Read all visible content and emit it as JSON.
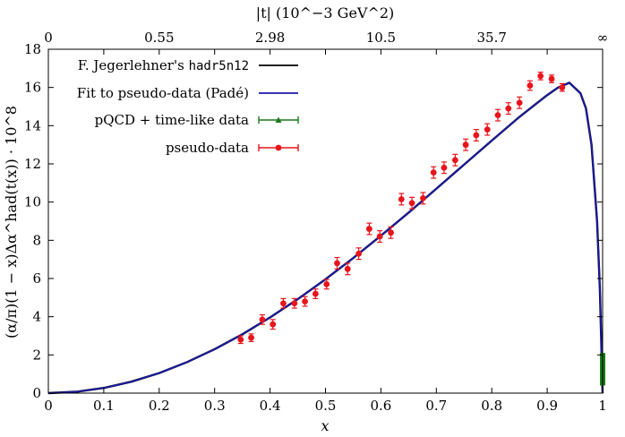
{
  "chart_data": {
    "type": "line",
    "xlabel": "x",
    "ylabel": "(α/π)(1 − x)Δα^had(t(x)) · 10^8",
    "top_axis_label": "|t| (10^−3 GeV^2)",
    "xlim": [
      0,
      1
    ],
    "ylim": [
      0,
      18
    ],
    "x_ticks": [
      0,
      0.1,
      0.2,
      0.3,
      0.4,
      0.5,
      0.6,
      0.7,
      0.8,
      0.9,
      1
    ],
    "x_tick_labels": [
      "0",
      "0.1",
      "0.2",
      "0.3",
      "0.4",
      "0.5",
      "0.6",
      "0.7",
      "0.8",
      "0.9",
      "1"
    ],
    "y_ticks": [
      0,
      2,
      4,
      6,
      8,
      10,
      12,
      14,
      16,
      18
    ],
    "y_tick_labels": [
      "0",
      "2",
      "4",
      "6",
      "8",
      "10",
      "12",
      "14",
      "16",
      "18"
    ],
    "top_ticks": [
      {
        "x": 0,
        "label": "0"
      },
      {
        "x": 0.2,
        "label": "0.55"
      },
      {
        "x": 0.4,
        "label": "2.98"
      },
      {
        "x": 0.6,
        "label": "10.5"
      },
      {
        "x": 0.8,
        "label": "35.7"
      },
      {
        "x": 1,
        "label": "∞"
      }
    ],
    "legend": {
      "position": "top-left",
      "entries": [
        {
          "label_prefix": "F. Jegerlehner's ",
          "label_code": "hadr5n12",
          "color": "#000000",
          "style": "line"
        },
        {
          "label_prefix": "Fit to pseudo-data (Padé)",
          "label_code": "",
          "color": "#1a1aa8",
          "style": "line"
        },
        {
          "label_prefix": "pQCD + time-like data",
          "label_code": "",
          "color": "#1a7a1a",
          "style": "triangle-errorbar"
        },
        {
          "label_prefix": "pseudo-data",
          "label_code": "",
          "color": "#e8141c",
          "style": "circle-errorbar"
        }
      ]
    },
    "series": [
      {
        "name": "F. Jegerlehner's hadr5n12",
        "color": "#000000",
        "x": [
          0,
          0.05,
          0.1,
          0.15,
          0.2,
          0.25,
          0.3,
          0.35,
          0.4,
          0.45,
          0.5,
          0.55,
          0.6,
          0.65,
          0.7,
          0.75,
          0.8,
          0.85,
          0.9,
          0.92,
          0.94,
          0.96,
          0.97,
          0.98,
          0.99,
          0.995,
          1
        ],
        "y": [
          0,
          0.07,
          0.27,
          0.6,
          1.05,
          1.62,
          2.3,
          3.08,
          3.96,
          4.92,
          5.96,
          7.07,
          8.24,
          9.45,
          10.7,
          11.96,
          13.22,
          14.46,
          15.6,
          16.0,
          16.25,
          15.7,
          14.9,
          13.0,
          9.0,
          5.5,
          0
        ]
      },
      {
        "name": "Fit to pseudo-data (Padé)",
        "color": "#1a1aa8",
        "x": [
          0,
          0.05,
          0.1,
          0.15,
          0.2,
          0.25,
          0.3,
          0.35,
          0.4,
          0.45,
          0.5,
          0.55,
          0.6,
          0.65,
          0.7,
          0.75,
          0.8,
          0.85,
          0.9,
          0.92,
          0.94,
          0.96,
          0.97,
          0.98,
          0.99,
          0.995,
          1
        ],
        "y": [
          0,
          0.07,
          0.27,
          0.6,
          1.05,
          1.62,
          2.3,
          3.08,
          3.96,
          4.92,
          5.96,
          7.07,
          8.24,
          9.45,
          10.7,
          11.96,
          13.22,
          14.46,
          15.6,
          16.0,
          16.25,
          15.7,
          14.9,
          13.0,
          9.0,
          5.5,
          0
        ]
      }
    ],
    "pqcd_band": {
      "name": "pQCD + time-like data",
      "color": "#1a7a1a",
      "x": 1,
      "y_low": 0.4,
      "y_high": 2.1
    },
    "pseudo_data": {
      "name": "pseudo-data",
      "color": "#e8141c",
      "points": [
        {
          "x": 0.347,
          "y": 2.8,
          "err": 0.2
        },
        {
          "x": 0.366,
          "y": 2.9,
          "err": 0.2
        },
        {
          "x": 0.386,
          "y": 3.85,
          "err": 0.25
        },
        {
          "x": 0.405,
          "y": 3.6,
          "err": 0.25
        },
        {
          "x": 0.424,
          "y": 4.7,
          "err": 0.25
        },
        {
          "x": 0.444,
          "y": 4.7,
          "err": 0.25
        },
        {
          "x": 0.463,
          "y": 4.8,
          "err": 0.25
        },
        {
          "x": 0.482,
          "y": 5.2,
          "err": 0.25
        },
        {
          "x": 0.502,
          "y": 5.7,
          "err": 0.25
        },
        {
          "x": 0.521,
          "y": 6.8,
          "err": 0.3
        },
        {
          "x": 0.54,
          "y": 6.5,
          "err": 0.3
        },
        {
          "x": 0.56,
          "y": 7.3,
          "err": 0.3
        },
        {
          "x": 0.579,
          "y": 8.6,
          "err": 0.3
        },
        {
          "x": 0.598,
          "y": 8.2,
          "err": 0.3
        },
        {
          "x": 0.618,
          "y": 8.4,
          "err": 0.3
        },
        {
          "x": 0.637,
          "y": 10.15,
          "err": 0.3
        },
        {
          "x": 0.656,
          "y": 9.95,
          "err": 0.3
        },
        {
          "x": 0.676,
          "y": 10.2,
          "err": 0.3
        },
        {
          "x": 0.695,
          "y": 11.55,
          "err": 0.3
        },
        {
          "x": 0.714,
          "y": 11.8,
          "err": 0.3
        },
        {
          "x": 0.734,
          "y": 12.2,
          "err": 0.3
        },
        {
          "x": 0.753,
          "y": 13.0,
          "err": 0.3
        },
        {
          "x": 0.772,
          "y": 13.5,
          "err": 0.3
        },
        {
          "x": 0.792,
          "y": 13.8,
          "err": 0.3
        },
        {
          "x": 0.811,
          "y": 14.55,
          "err": 0.3
        },
        {
          "x": 0.83,
          "y": 14.9,
          "err": 0.3
        },
        {
          "x": 0.85,
          "y": 15.2,
          "err": 0.3
        },
        {
          "x": 0.869,
          "y": 16.1,
          "err": 0.25
        },
        {
          "x": 0.888,
          "y": 16.6,
          "err": 0.2
        },
        {
          "x": 0.908,
          "y": 16.45,
          "err": 0.2
        },
        {
          "x": 0.927,
          "y": 16.0,
          "err": 0.2
        }
      ]
    }
  }
}
